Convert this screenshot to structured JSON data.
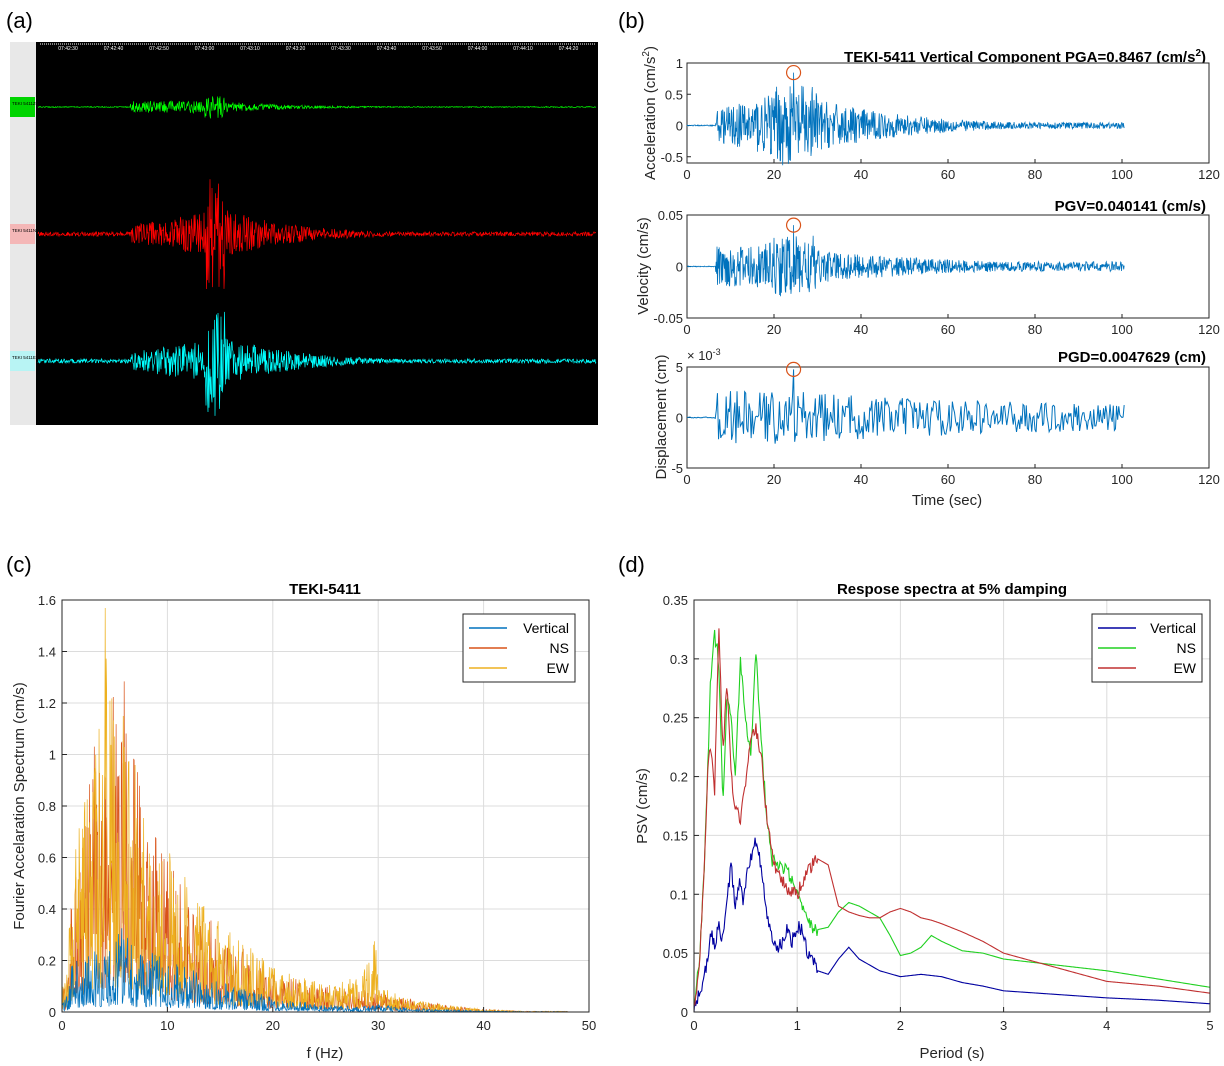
{
  "panel_labels": {
    "a": "(a)",
    "b": "(b)",
    "c": "(c)",
    "d": "(d)"
  },
  "panel_a": {
    "time_ticks": [
      "07:42:30",
      "07:42:40",
      "07:42:50",
      "07:43:00",
      "07:43:10",
      "07:43:20",
      "07:43:30",
      "07:43:40",
      "07:43:50",
      "07:44:00",
      "07:44:10",
      "07:44:20"
    ],
    "channels": [
      {
        "label": "TEKI 5411Z0 cm/s²",
        "color": "#00ff00",
        "tag_color": "#00d400"
      },
      {
        "label": "TEKI 5411N2 cm/s²",
        "color": "#ff0000",
        "tag_color": "#f4b7b7"
      },
      {
        "label": "TEKI 5411E2 cm/s²",
        "color": "#00ffff",
        "tag_color": "#b8f4f4"
      }
    ]
  },
  "panel_b": {
    "color": "#0072bd",
    "marker_color": "#d95319",
    "title_station": "TEKI-5411  Vertical Component",
    "title_pga_prefix": "PGA=0.8467 (cm/s",
    "title_pga_sup": "2",
    "title_pga_suffix": ")",
    "pgv_title": "PGV=0.040141 (cm/s)",
    "pgd_title": "PGD=0.0047629 (cm)",
    "xlabel": "Time (sec)",
    "acc_ylabel_prefix": "Acceleration (cm/s",
    "acc_ylabel_sup": "2",
    "acc_ylabel_suffix": ")",
    "vel_ylabel": "Velocity (cm/s)",
    "disp_ylabel": "Displacement (cm)",
    "disp_exponent_base": "× 10",
    "disp_exponent_power": "-3",
    "x_ticks": [
      "0",
      "20",
      "40",
      "60",
      "80",
      "100",
      "120"
    ],
    "acc_y_ticks": [
      "1",
      "0.5",
      "0",
      "-0.5"
    ],
    "vel_y_ticks": [
      "0.05",
      "0",
      "-0.05"
    ],
    "disp_y_ticks": [
      "5",
      "0",
      "-5"
    ]
  },
  "chart_data": [
    {
      "id": "b-acceleration",
      "type": "line",
      "ylabel": "Acceleration (cm/s^2)",
      "xlim": [
        0,
        120
      ],
      "ylim": [
        -0.6,
        1.0
      ],
      "peak": {
        "x": 24.5,
        "y": 0.8467
      },
      "record_span": [
        0,
        100.5
      ]
    },
    {
      "id": "b-velocity",
      "type": "line",
      "ylabel": "Velocity (cm/s)",
      "xlim": [
        0,
        120
      ],
      "ylim": [
        -0.05,
        0.05
      ],
      "peak": {
        "x": 24.5,
        "y": 0.040141
      },
      "record_span": [
        0,
        100.5
      ]
    },
    {
      "id": "b-displacement",
      "type": "line",
      "ylabel": "Displacement (cm)",
      "xlim": [
        0,
        120
      ],
      "ylim": [
        -5,
        5
      ],
      "peak": {
        "x": 24.5,
        "y": 4.7629
      },
      "record_span": [
        0,
        100.5
      ]
    },
    {
      "id": "c-fourier",
      "type": "line",
      "title": "TEKI-5411",
      "xlabel": "f (Hz)",
      "ylabel": "Fourier Accelaration  Spectrum (cm/s)",
      "xlim": [
        0,
        50
      ],
      "ylim": [
        0,
        1.6
      ],
      "x_ticks": [
        "0",
        "10",
        "20",
        "30",
        "40",
        "50"
      ],
      "y_ticks": [
        "0",
        "0.2",
        "0.4",
        "0.6",
        "0.8",
        "1",
        "1.2",
        "1.4",
        "1.6"
      ],
      "grid": true,
      "legend_position": "top-right",
      "series": [
        {
          "name": "Vertical",
          "color": "#0072bd",
          "envelope_x": [
            0.3,
            1,
            2,
            3,
            4,
            5,
            6,
            7,
            8,
            10,
            12,
            15,
            18,
            20,
            23,
            25,
            28,
            30,
            33,
            36,
            40,
            44
          ],
          "envelope_y": [
            0.05,
            0.2,
            0.22,
            0.24,
            0.25,
            0.26,
            0.45,
            0.22,
            0.25,
            0.2,
            0.17,
            0.12,
            0.08,
            0.06,
            0.04,
            0.03,
            0.02,
            0.03,
            0.015,
            0.01,
            0.005,
            0.002
          ]
        },
        {
          "name": "NS",
          "color": "#d95319",
          "envelope_x": [
            0.3,
            1,
            2,
            3,
            4,
            5,
            5.6,
            6,
            7,
            8,
            10,
            12,
            15,
            18,
            20,
            23,
            25,
            28,
            30,
            33,
            36,
            40,
            44
          ],
          "envelope_y": [
            0.1,
            0.5,
            0.75,
            1.05,
            1.1,
            1.35,
            1.53,
            1.32,
            1.0,
            0.75,
            0.6,
            0.45,
            0.32,
            0.22,
            0.15,
            0.12,
            0.1,
            0.09,
            0.08,
            0.05,
            0.03,
            0.01,
            0.003
          ]
        },
        {
          "name": "EW",
          "color": "#edb120",
          "envelope_x": [
            0.3,
            1,
            2,
            3,
            4,
            4.1,
            5,
            6,
            7,
            8,
            10,
            12,
            15,
            18,
            20,
            23,
            25,
            28,
            29.8,
            30,
            33,
            36,
            40,
            44
          ],
          "envelope_y": [
            0.15,
            0.55,
            0.85,
            1.0,
            1.25,
            1.57,
            1.15,
            1.2,
            0.95,
            0.8,
            0.65,
            0.5,
            0.35,
            0.25,
            0.18,
            0.15,
            0.1,
            0.14,
            0.3,
            0.1,
            0.05,
            0.03,
            0.01,
            0.003
          ]
        }
      ]
    },
    {
      "id": "d-response",
      "type": "line",
      "title": "Respose spectra at 5% damping",
      "xlabel": "Period (s)",
      "ylabel": "PSV (cm/s)",
      "xlim": [
        0,
        5
      ],
      "ylim": [
        0,
        0.35
      ],
      "x_ticks": [
        "0",
        "1",
        "2",
        "3",
        "4",
        "5"
      ],
      "y_ticks": [
        "0",
        "0.05",
        "0.1",
        "0.15",
        "0.2",
        "0.25",
        "0.3",
        "0.35"
      ],
      "grid": true,
      "legend_position": "top-right",
      "series": [
        {
          "name": "Vertical",
          "color": "#0000a0",
          "x": [
            0,
            0.05,
            0.1,
            0.13,
            0.16,
            0.2,
            0.24,
            0.28,
            0.32,
            0.36,
            0.4,
            0.44,
            0.48,
            0.52,
            0.56,
            0.6,
            0.65,
            0.7,
            0.75,
            0.8,
            0.85,
            0.9,
            0.95,
            1.0,
            1.05,
            1.1,
            1.2,
            1.3,
            1.4,
            1.5,
            1.6,
            1.8,
            2.0,
            2.2,
            2.4,
            2.6,
            2.8,
            3.0,
            3.5,
            4.0,
            4.5,
            5.0
          ],
          "y": [
            0.003,
            0.015,
            0.03,
            0.045,
            0.068,
            0.058,
            0.072,
            0.06,
            0.095,
            0.125,
            0.088,
            0.11,
            0.093,
            0.12,
            0.135,
            0.145,
            0.125,
            0.085,
            0.065,
            0.052,
            0.058,
            0.07,
            0.06,
            0.072,
            0.07,
            0.05,
            0.035,
            0.032,
            0.045,
            0.055,
            0.045,
            0.035,
            0.03,
            0.032,
            0.03,
            0.025,
            0.022,
            0.018,
            0.015,
            0.012,
            0.01,
            0.007
          ]
        },
        {
          "name": "NS",
          "color": "#20d020",
          "x": [
            0,
            0.05,
            0.1,
            0.13,
            0.16,
            0.2,
            0.24,
            0.28,
            0.32,
            0.36,
            0.4,
            0.45,
            0.5,
            0.55,
            0.6,
            0.65,
            0.7,
            0.75,
            0.8,
            0.9,
            1.0,
            1.1,
            1.2,
            1.3,
            1.4,
            1.5,
            1.6,
            1.7,
            1.8,
            1.9,
            2.0,
            2.1,
            2.2,
            2.3,
            2.4,
            2.6,
            2.8,
            3.0,
            3.5,
            4.0,
            4.5,
            5.0
          ],
          "y": [
            0.005,
            0.04,
            0.12,
            0.2,
            0.28,
            0.32,
            0.3,
            0.18,
            0.27,
            0.25,
            0.2,
            0.3,
            0.25,
            0.22,
            0.305,
            0.23,
            0.17,
            0.13,
            0.125,
            0.12,
            0.1,
            0.075,
            0.07,
            0.072,
            0.085,
            0.093,
            0.09,
            0.085,
            0.08,
            0.065,
            0.048,
            0.05,
            0.055,
            0.065,
            0.06,
            0.052,
            0.05,
            0.045,
            0.04,
            0.035,
            0.028,
            0.021
          ]
        },
        {
          "name": "EW",
          "color": "#c03030",
          "x": [
            0,
            0.05,
            0.1,
            0.13,
            0.16,
            0.2,
            0.24,
            0.28,
            0.32,
            0.36,
            0.4,
            0.45,
            0.5,
            0.55,
            0.6,
            0.65,
            0.7,
            0.75,
            0.8,
            0.9,
            1.0,
            1.1,
            1.2,
            1.3,
            1.4,
            1.5,
            1.6,
            1.7,
            1.8,
            1.9,
            2.0,
            2.1,
            2.2,
            2.3,
            2.4,
            2.6,
            2.8,
            3.0,
            3.5,
            4.0,
            4.5,
            5.0
          ],
          "y": [
            0.005,
            0.04,
            0.12,
            0.2,
            0.23,
            0.185,
            0.33,
            0.22,
            0.28,
            0.2,
            0.17,
            0.165,
            0.19,
            0.23,
            0.24,
            0.22,
            0.17,
            0.14,
            0.12,
            0.105,
            0.1,
            0.12,
            0.13,
            0.125,
            0.09,
            0.085,
            0.082,
            0.08,
            0.08,
            0.085,
            0.088,
            0.085,
            0.08,
            0.078,
            0.075,
            0.068,
            0.06,
            0.05,
            0.038,
            0.026,
            0.022,
            0.016
          ]
        }
      ]
    }
  ]
}
